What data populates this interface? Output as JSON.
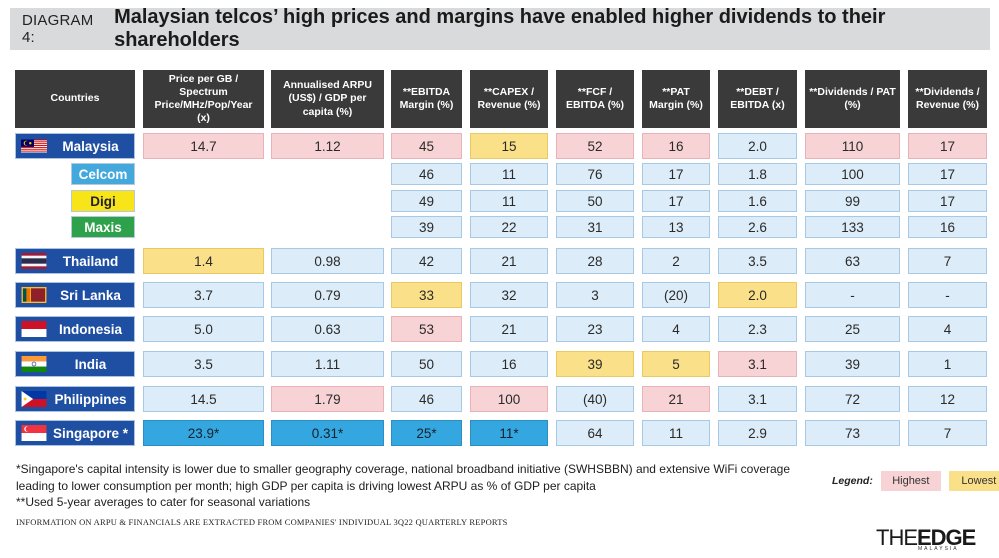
{
  "title": {
    "prefix": "DIAGRAM 4:",
    "main": "Malaysian telcos’ high prices and margins have enabled higher dividends to their shareholders"
  },
  "chart_data": {
    "type": "table",
    "columns": [
      "Countries",
      "Price per GB / Spectrum Price/MHz/Pop/Year (x)",
      "Annualised ARPU (US$) / GDP per capita (%)",
      "**EBITDA Margin (%)",
      "**CAPEX / Revenue (%)",
      "**FCF / EBITDA (%)",
      "**PAT Margin (%)",
      "**DEBT / EBITDA (x)",
      "**Dividends / PAT (%)",
      "**Dividends / Revenue (%)"
    ],
    "rows": [
      {
        "name": "Malaysia",
        "kind": "country",
        "flag": "malaysia",
        "values": [
          "14.7",
          "1.12",
          "45",
          "15",
          "52",
          "16",
          "2.0",
          "110",
          "17"
        ],
        "marks": [
          "hi",
          "hi",
          "hi",
          "lo",
          "hi",
          "hi",
          "",
          "hi",
          "hi"
        ]
      },
      {
        "name": "Celcom",
        "kind": "operator",
        "op": "celcom",
        "values": [
          "",
          "",
          "46",
          "11",
          "76",
          "17",
          "1.8",
          "100",
          "17"
        ],
        "marks": [
          "",
          "",
          "",
          "",
          "",
          "",
          "",
          "",
          ""
        ]
      },
      {
        "name": "Digi",
        "kind": "operator",
        "op": "digi",
        "values": [
          "",
          "",
          "49",
          "11",
          "50",
          "17",
          "1.6",
          "99",
          "17"
        ],
        "marks": [
          "",
          "",
          "",
          "",
          "",
          "",
          "",
          "",
          ""
        ]
      },
      {
        "name": "Maxis",
        "kind": "operator",
        "op": "maxis",
        "values": [
          "",
          "",
          "39",
          "22",
          "31",
          "13",
          "2.6",
          "133",
          "16"
        ],
        "marks": [
          "",
          "",
          "",
          "",
          "",
          "",
          "",
          "",
          ""
        ]
      },
      {
        "name": "Thailand",
        "kind": "country",
        "flag": "thailand",
        "values": [
          "1.4",
          "0.98",
          "42",
          "21",
          "28",
          "2",
          "3.5",
          "63",
          "7"
        ],
        "marks": [
          "lo",
          "",
          "",
          "",
          "",
          "",
          "",
          "",
          ""
        ]
      },
      {
        "name": "Sri Lanka",
        "kind": "country",
        "flag": "srilanka",
        "values": [
          "3.7",
          "0.79",
          "33",
          "32",
          "3",
          "(20)",
          "2.0",
          "-",
          "-"
        ],
        "marks": [
          "",
          "",
          "lo",
          "",
          "",
          "",
          "lo",
          "",
          ""
        ]
      },
      {
        "name": "Indonesia",
        "kind": "country",
        "flag": "indonesia",
        "values": [
          "5.0",
          "0.63",
          "53",
          "21",
          "23",
          "4",
          "2.3",
          "25",
          "4"
        ],
        "marks": [
          "",
          "",
          "hi",
          "",
          "",
          "",
          "",
          "",
          ""
        ]
      },
      {
        "name": "India",
        "kind": "country",
        "flag": "india",
        "values": [
          "3.5",
          "1.11",
          "50",
          "16",
          "39",
          "5",
          "3.1",
          "39",
          "1"
        ],
        "marks": [
          "",
          "",
          "",
          "",
          "lo",
          "lo",
          "hi",
          "",
          ""
        ]
      },
      {
        "name": "Philippines",
        "kind": "country",
        "flag": "philippines",
        "values": [
          "14.5",
          "1.79",
          "46",
          "100",
          "(40)",
          "21",
          "3.1",
          "72",
          "12"
        ],
        "marks": [
          "",
          "hi",
          "",
          "hi",
          "",
          "hi",
          "",
          "",
          ""
        ]
      },
      {
        "name": "Singapore *",
        "kind": "country",
        "flag": "singapore",
        "values": [
          "23.9*",
          "0.31*",
          "25*",
          "11*",
          "64",
          "11",
          "2.9",
          "73",
          "7"
        ],
        "marks": [
          "sg",
          "sg",
          "sg",
          "sg",
          "",
          "",
          "",
          "",
          ""
        ]
      }
    ]
  },
  "notes": [
    "*Singapore's capital intensity is lower due to smaller geography coverage, national broadband initiative (SWHSBBN) and extensive WiFi coverage leading to lower consumption per month; high GDP per capita is driving lowest ARPU as % of GDP per capita",
    "**Used 5-year averages to cater for seasonal variations"
  ],
  "source": "INFORMATION ON ARPU & FINANCIALS ARE EXTRACTED FROM COMPANIES' INDIVIDUAL 3Q22 QUARTERLY REPORTS",
  "legend": {
    "label": "Legend:",
    "highest": "Highest",
    "lowest": "Lowest"
  },
  "logo": {
    "a": "THE",
    "b": "EDGE",
    "sub": "MALAYSIA"
  },
  "colors": {
    "highest": "#f7d3d6",
    "lowest": "#fbe08a",
    "header": "#3a3a3a",
    "country": "#1f4fa3",
    "cell": "#dcecf8",
    "singapore": "#35a7e0"
  }
}
